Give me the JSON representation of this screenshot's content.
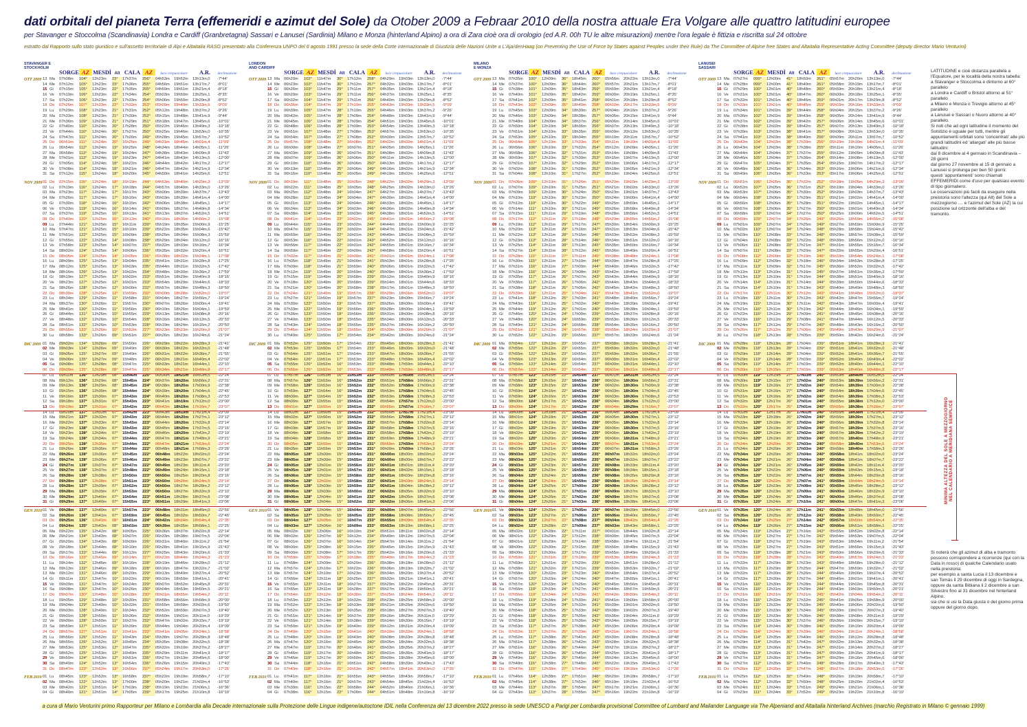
{
  "title": {
    "bold": "dati orbitali del pianeta Terra (effemeridi e azimut del Sole)",
    "rest": " da Otober 2009 a Febraar 2010 della nostra attuale Era Volgare alle quattro latitudini europee"
  },
  "subtitle": "per Stavanger e Stoccolma (Scandinavia) Londra e Cardiff (Granbretagna) Sassari e Lanusei (Sardinia) Milano e Monza (hinterland Alpino) a ora di Zara cioè ora di orologio (ed A.R. 00h TU le altre misurazioni) mentre l'ora legale è fittizia e riscritta sul 24 ottobre",
  "source_line": "estratto dal Rapporto sullo stato giuridico e sull'assetto territoriale di Alpi e Altaitalia RASG presentato alla Conferenza UNPO del 6 agosto 1991 presso la sede della Corte internazionale di Giustizia delle Nazioni Unite a L'Aja/denHaag (on Preventing the Use of Force by States against Peoples under their Rule) da The Committee of Alpine free States and Altaitalia Representative Acting Committee (deputy director Mario Venturini)",
  "columns": {
    "sorge": "SORGE",
    "az": "AZ",
    "mesdi": "MESDÌ",
    "alt": "Alt",
    "cala": "CALA",
    "az2": "AZ",
    "luce": "luce crepuscolare",
    "ar": "A.R.",
    "decl": "declinazione"
  },
  "calendar": {
    "weekdays": [
      "Lu",
      "Ma",
      "Me",
      "Gi",
      "Ve",
      "Sa",
      "Do"
    ],
    "first_weekday_index": 1,
    "months": [
      {
        "label": "OTT 2009",
        "start": 13,
        "count": 19
      },
      {
        "label": "NOV 2009",
        "start": 1,
        "count": 30
      },
      {
        "label": "DIC 2009",
        "start": 1,
        "count": 31
      },
      {
        "label": "GEN 2010",
        "start": 1,
        "count": 31
      },
      {
        "label": "FEB 2010",
        "start": 1,
        "count": 4
      }
    ],
    "red_letter_days": [
      "0-15",
      "1-09",
      "2-02",
      "2-05",
      "2-13",
      "2-24",
      "2-29",
      "2-31",
      "3-15",
      "3-29",
      "3-30",
      "4-02"
    ]
  },
  "ephemeris": {
    "anchor_day_index": [
      0,
      49,
      61,
      69,
      79,
      107,
      114
    ],
    "dst_note": "ora legale fino al 24 ottobre (+60 min sui primi 12 giorni)",
    "shared": {
      "ar_min": [
        793,
        988,
        1036,
        1078,
        1121,
        1241,
        1270
      ],
      "decl_arcmin": [
        -464,
        -1301,
        -1387,
        -1406,
        -1386,
        -1097,
        -979
      ]
    },
    "stations": [
      {
        "name1": "STAVANGER E",
        "name2": "STOCKHOLM",
        "sorge": [
          368,
          542,
          559,
          566,
          569,
          532,
          520
        ],
        "azS": [
          104,
          134,
          137,
          138,
          137,
          125,
          121
        ],
        "mesdi": [
          743,
          746,
          751,
          755,
          760,
          773,
          771
        ],
        "alt": [
          23,
          9,
          7,
          7,
          7,
          12,
          14
        ],
        "cala": [
          997,
          950,
          942,
          944,
          955,
          1009,
          1025
        ],
        "azC": [
          256,
          226,
          223,
          222,
          223,
          235,
          239
        ],
        "luce1": [
          233,
          389,
          402,
          408,
          411,
          329,
          317
        ],
        "luce2": [
          1132,
          1102,
          1099,
          1101,
          1109,
          1151,
          1165
        ]
      },
      {
        "name1": "LONDON",
        "name2": "AND CARDIFF",
        "sorge": [
          320,
          472,
          481,
          485,
          486,
          466,
          458
        ],
        "azS": [
          102,
          125,
          127,
          128,
          128,
          119,
          116
        ],
        "mesdi": [
          707,
          710,
          715,
          719,
          724,
          737,
          735
        ],
        "alt": [
          30,
          17,
          15,
          15,
          15,
          20,
          22
        ],
        "cala": [
          972,
          954,
          951,
          953,
          962,
          1008,
          1020
        ],
        "azC": [
          258,
          233,
          232,
          231,
          232,
          241,
          244
        ],
        "luce1": [
          209,
          345,
          355,
          360,
          362,
          301,
          291
        ],
        "luce2": [
          1083,
          1080,
          1077,
          1079,
          1086,
          1116,
          1128
        ]
      },
      {
        "name1": "MILANO",
        "name2": "E MONZA",
        "sorge": [
          395,
          474,
          480,
          483,
          484,
          470,
          463
        ],
        "azS": [
          100,
          122,
          124,
          125,
          124,
          116,
          113
        ],
        "mesdi": [
          729,
          732,
          737,
          741,
          746,
          759,
          757
        ],
        "alt": [
          36,
          23,
          21,
          21,
          21,
          26,
          28
        ],
        "cala": [
          1065,
          1015,
          1012,
          1014,
          1023,
          1065,
          1075
        ],
        "azC": [
          260,
          237,
          236,
          235,
          236,
          244,
          247
        ],
        "luce1": [
          296,
          358,
          364,
          367,
          369,
          325,
          316
        ],
        "luce2": [
          1162,
          1112,
          1109,
          1111,
          1118,
          1152,
          1162
        ]
      },
      {
        "name1": "LANUSEI",
        "name2": "SASSARI",
        "sorge": [
          387,
          448,
          452,
          454,
          455,
          448,
          443
        ],
        "azS": [
          99,
          118,
          120,
          120,
          120,
          113,
          111
        ],
        "mesdi": [
          720,
          733,
          737,
          740,
          744,
          756,
          754
        ],
        "alt": [
          41,
          28,
          26,
          26,
          26,
          31,
          33
        ],
        "cala": [
          1070,
          1024,
          1021,
          1023,
          1030,
          1064,
          1072
        ],
        "azC": [
          261,
          239,
          240,
          240,
          241,
          247,
          249
        ],
        "luce1": [
          297,
          351,
          355,
          358,
          360,
          330,
          323
        ],
        "luce2": [
          1160,
          1121,
          1118,
          1120,
          1127,
          1155,
          1162
        ]
      }
    ]
  },
  "sidebar_top": [
    "LATITUDINE e cioè distanza parallela a l'Equatore, per le località della nostra tabella:",
    "a Stavanger e Stoccolma e dintorno al 60° parallelo",
    "a Londra e Cardiff o Bristol attorno al 51° parallelo",
    "a Milano e Monza o Trevigio attorno al 45° parallelo",
    "a Lanusei e Sassari o Nuoro attorno al 40° parallelo.",
    "Si noti che ad ogni latitudine il momento del Solstizio è uguale per tutti, mentre gli appuntamenti orbitali sono 'concentrati' alle più grandi latitudini ed 'allargati' alle più basse latitudini:",
    "dal 8 dicembre al 4 gennaio in Scandinavia – 28 giorni",
    "dal giorno 27 novembre al 15 di gennaio a Lanusei si prolunga per ben 50 giorni:",
    "questi 'appuntamenti' sono chiamati EFFEMERIDI come d'uso per qualsiasi evento di tipo giornaliero.",
    "Le osservazioni più facili da eseguire nella preistoria sono l'altezza (qui Alt) del Sole a mezzogiorno .... e l'azimut del Sole (AZ) la cui posizione sul orizzonte dell'alba e del tramonto."
  ],
  "sidebar_bottom": [
    "Si noterà che gli azimut di alba e tramonto possono corrispondere a ricorrenze (qui con la Data in rosso) di qualche Calendario usato nella preistoria:",
    "per esempio a santa Lucia il 13 dicembre e san Tomás il 29 dicembre di oggi in Sardegna,",
    "oppure da santa Bibiana il 2 dicembre a san Silvestro fino al 31 dicembre nel hinterland Alpino.",
    "sia che si usi la Data giusta o del giorno prima oppure del giorno dopo."
  ],
  "solstice": {
    "label1": "MINIMA ALTEZZA DEL SOLE A MEZZOGIORNO",
    "label2": "NEL CALENDARIO A MERIDIANA SEMPLICE"
  },
  "footer": "a cura di Mario Venturini primo Rapporteur per Milano e Lombardia alla Decade internazionale sulla Protezione delle Lingue indigene/autoctone IDIL nella Conferenza del 13 dicembre 2022 presso la sede UNESCO a Parigi per Lombardia provisional Committee of Lumbard and Mailander Language via The Alpeniand and Altaitalia hinterland Archives (marchio Registrato in Milano © gennaio 1999)",
  "accent_colors": {
    "highlight": "#FBF4B5",
    "az_header_bg": "#ffe84a",
    "red": "#b32020",
    "navy": "#14144e"
  }
}
